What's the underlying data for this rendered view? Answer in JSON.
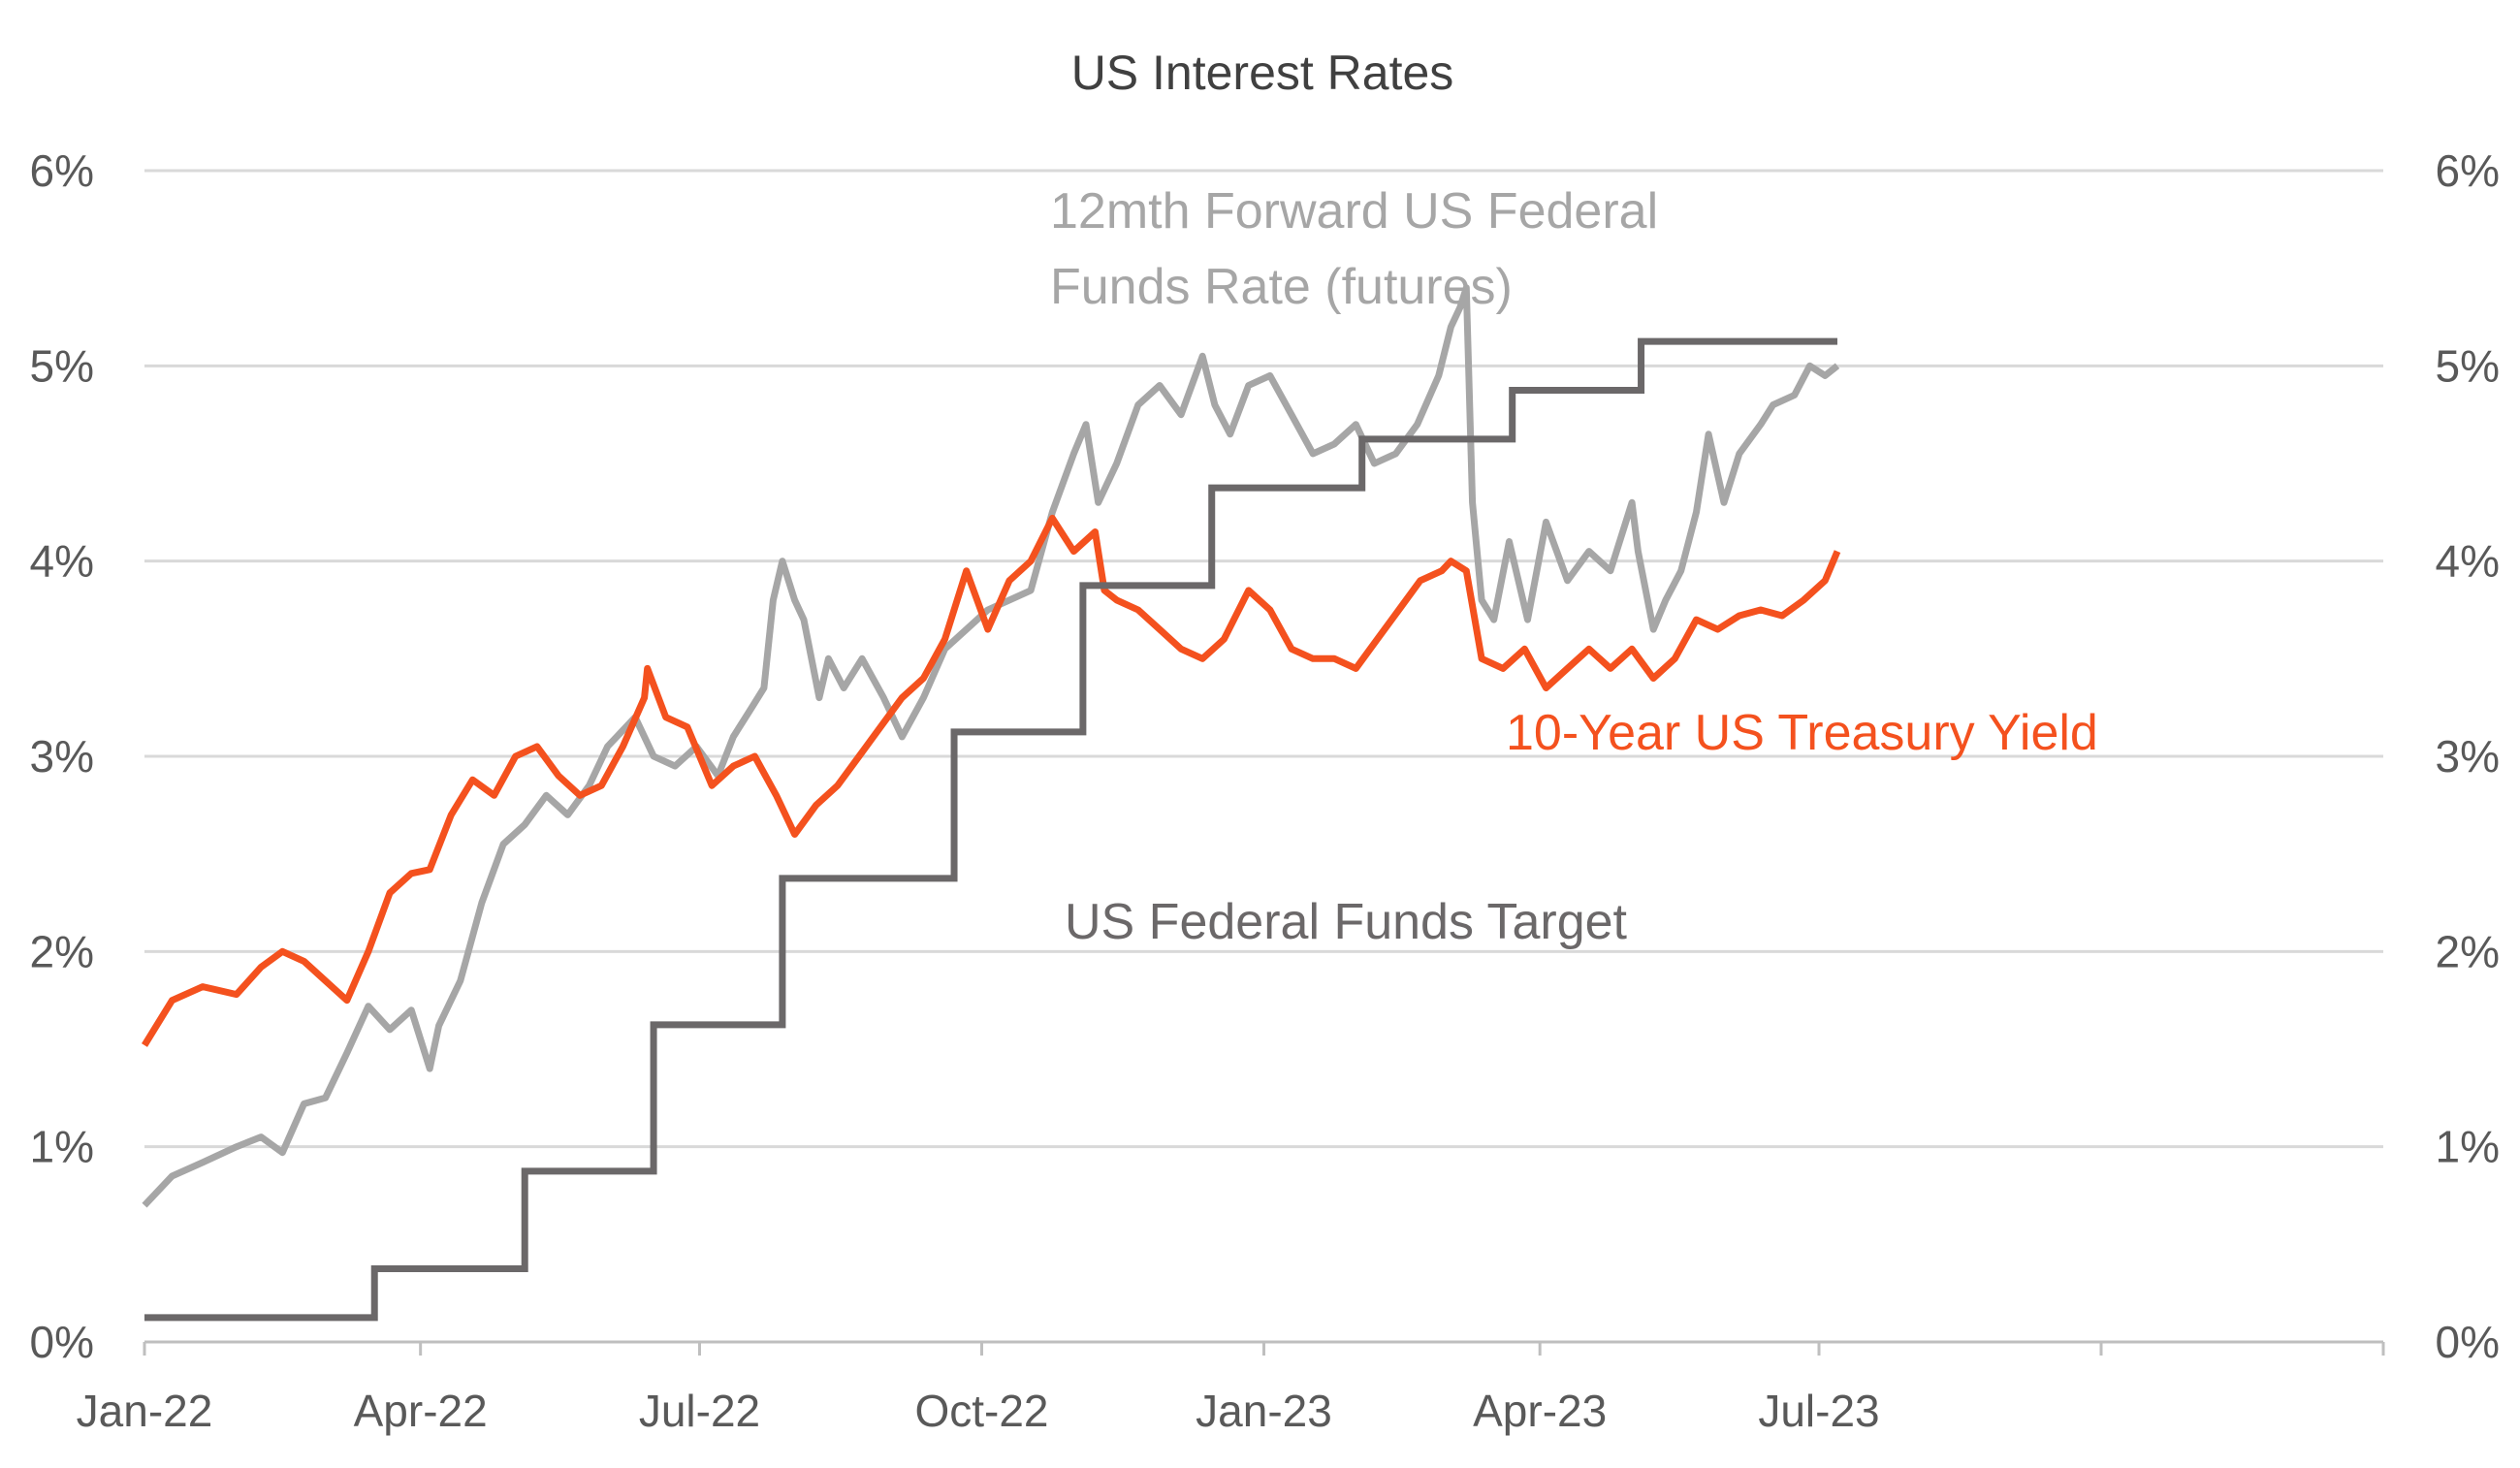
{
  "chart_data": {
    "type": "line",
    "title": "US Interest Rates",
    "y_axis_left": {
      "min": 0,
      "max": 6,
      "ticks": [
        "0%",
        "1%",
        "2%",
        "3%",
        "4%",
        "5%",
        "6%"
      ]
    },
    "y_axis_right": {
      "min": 0,
      "max": 6,
      "ticks": [
        "0%",
        "1%",
        "2%",
        "3%",
        "4%",
        "5%",
        "6%"
      ]
    },
    "x_axis": {
      "range": [
        "2022-01-01",
        "2024-01-01"
      ],
      "ticks": [
        {
          "date": "2022-01-01",
          "label": "Jan-22"
        },
        {
          "date": "2022-04-01",
          "label": "Apr-22"
        },
        {
          "date": "2022-07-01",
          "label": "Jul-22"
        },
        {
          "date": "2022-10-01",
          "label": "Oct-22"
        },
        {
          "date": "2023-01-01",
          "label": "Jan-23"
        },
        {
          "date": "2023-04-01",
          "label": "Apr-23"
        },
        {
          "date": "2023-07-01",
          "label": "Jul-23"
        }
      ]
    },
    "grid": true,
    "legend": "none (inline series labels)",
    "series": [
      {
        "name": "12mth Forward US Federal Funds Rate (futures)",
        "color": "#a6a6a6",
        "kind": "line",
        "points": [
          [
            "2022-01-01",
            0.7
          ],
          [
            "2022-01-10",
            0.85
          ],
          [
            "2022-01-20",
            0.92
          ],
          [
            "2022-01-31",
            1.0
          ],
          [
            "2022-02-08",
            1.05
          ],
          [
            "2022-02-15",
            0.97
          ],
          [
            "2022-02-22",
            1.22
          ],
          [
            "2022-03-01",
            1.25
          ],
          [
            "2022-03-08",
            1.48
          ],
          [
            "2022-03-15",
            1.72
          ],
          [
            "2022-03-22",
            1.6
          ],
          [
            "2022-03-29",
            1.7
          ],
          [
            "2022-04-04",
            1.4
          ],
          [
            "2022-04-07",
            1.62
          ],
          [
            "2022-04-14",
            1.85
          ],
          [
            "2022-04-21",
            2.25
          ],
          [
            "2022-04-28",
            2.55
          ],
          [
            "2022-05-05",
            2.65
          ],
          [
            "2022-05-12",
            2.8
          ],
          [
            "2022-05-19",
            2.7
          ],
          [
            "2022-05-26",
            2.85
          ],
          [
            "2022-06-01",
            3.05
          ],
          [
            "2022-06-07",
            3.15
          ],
          [
            "2022-06-10",
            3.2
          ],
          [
            "2022-06-16",
            3.0
          ],
          [
            "2022-06-23",
            2.95
          ],
          [
            "2022-06-30",
            3.05
          ],
          [
            "2022-07-07",
            2.9
          ],
          [
            "2022-07-12",
            3.1
          ],
          [
            "2022-07-18",
            3.25
          ],
          [
            "2022-07-22",
            3.35
          ],
          [
            "2022-07-25",
            3.8
          ],
          [
            "2022-07-28",
            4.0
          ],
          [
            "2022-08-01",
            3.8
          ],
          [
            "2022-08-04",
            3.7
          ],
          [
            "2022-08-09",
            3.3
          ],
          [
            "2022-08-12",
            3.5
          ],
          [
            "2022-08-17",
            3.35
          ],
          [
            "2022-08-23",
            3.5
          ],
          [
            "2022-08-30",
            3.3
          ],
          [
            "2022-09-05",
            3.1
          ],
          [
            "2022-09-12",
            3.3
          ],
          [
            "2022-09-19",
            3.55
          ],
          [
            "2022-09-26",
            3.65
          ],
          [
            "2022-10-03",
            3.75
          ],
          [
            "2022-10-10",
            3.8
          ],
          [
            "2022-10-17",
            3.85
          ],
          [
            "2022-10-24",
            4.25
          ],
          [
            "2022-10-31",
            4.55
          ],
          [
            "2022-11-04",
            4.7
          ],
          [
            "2022-11-08",
            4.3
          ],
          [
            "2022-11-14",
            4.5
          ],
          [
            "2022-11-21",
            4.8
          ],
          [
            "2022-11-28",
            4.9
          ],
          [
            "2022-12-05",
            4.75
          ],
          [
            "2022-12-12",
            5.05
          ],
          [
            "2022-12-16",
            4.8
          ],
          [
            "2022-12-21",
            4.65
          ],
          [
            "2022-12-27",
            4.9
          ],
          [
            "2023-01-03",
            4.95
          ],
          [
            "2023-01-10",
            4.75
          ],
          [
            "2023-01-17",
            4.55
          ],
          [
            "2023-01-24",
            4.6
          ],
          [
            "2023-01-31",
            4.7
          ],
          [
            "2023-02-06",
            4.5
          ],
          [
            "2023-02-13",
            4.55
          ],
          [
            "2023-02-20",
            4.7
          ],
          [
            "2023-02-27",
            4.95
          ],
          [
            "2023-03-03",
            5.2
          ],
          [
            "2023-03-06",
            5.3
          ],
          [
            "2023-03-08",
            5.4
          ],
          [
            "2023-03-10",
            4.3
          ],
          [
            "2023-03-13",
            3.8
          ],
          [
            "2023-03-17",
            3.7
          ],
          [
            "2023-03-22",
            4.1
          ],
          [
            "2023-03-28",
            3.7
          ],
          [
            "2023-04-03",
            4.2
          ],
          [
            "2023-04-10",
            3.9
          ],
          [
            "2023-04-17",
            4.05
          ],
          [
            "2023-04-24",
            3.95
          ],
          [
            "2023-05-01",
            4.3
          ],
          [
            "2023-05-03",
            4.05
          ],
          [
            "2023-05-08",
            3.65
          ],
          [
            "2023-05-12",
            3.8
          ],
          [
            "2023-05-17",
            3.95
          ],
          [
            "2023-05-22",
            4.25
          ],
          [
            "2023-05-26",
            4.65
          ],
          [
            "2023-05-31",
            4.3
          ],
          [
            "2023-06-05",
            4.55
          ],
          [
            "2023-06-12",
            4.7
          ],
          [
            "2023-06-16",
            4.8
          ],
          [
            "2023-06-23",
            4.85
          ],
          [
            "2023-06-28",
            5.0
          ],
          [
            "2023-07-03",
            4.95
          ],
          [
            "2023-07-07",
            5.0
          ]
        ]
      },
      {
        "name": "10-Year US Treasury Yield",
        "color": "#f4511e",
        "kind": "line",
        "points": [
          [
            "2022-01-01",
            1.52
          ],
          [
            "2022-01-10",
            1.75
          ],
          [
            "2022-01-20",
            1.82
          ],
          [
            "2022-01-31",
            1.78
          ],
          [
            "2022-02-08",
            1.92
          ],
          [
            "2022-02-15",
            2.0
          ],
          [
            "2022-02-22",
            1.95
          ],
          [
            "2022-03-01",
            1.85
          ],
          [
            "2022-03-08",
            1.75
          ],
          [
            "2022-03-15",
            2.0
          ],
          [
            "2022-03-22",
            2.3
          ],
          [
            "2022-03-29",
            2.4
          ],
          [
            "2022-04-04",
            2.42
          ],
          [
            "2022-04-11",
            2.7
          ],
          [
            "2022-04-18",
            2.88
          ],
          [
            "2022-04-25",
            2.8
          ],
          [
            "2022-05-02",
            3.0
          ],
          [
            "2022-05-09",
            3.05
          ],
          [
            "2022-05-16",
            2.9
          ],
          [
            "2022-05-23",
            2.8
          ],
          [
            "2022-05-30",
            2.85
          ],
          [
            "2022-06-06",
            3.05
          ],
          [
            "2022-06-13",
            3.3
          ],
          [
            "2022-06-14",
            3.45
          ],
          [
            "2022-06-20",
            3.2
          ],
          [
            "2022-06-27",
            3.15
          ],
          [
            "2022-07-05",
            2.85
          ],
          [
            "2022-07-12",
            2.95
          ],
          [
            "2022-07-19",
            3.0
          ],
          [
            "2022-07-26",
            2.8
          ],
          [
            "2022-08-01",
            2.6
          ],
          [
            "2022-08-08",
            2.75
          ],
          [
            "2022-08-15",
            2.85
          ],
          [
            "2022-08-22",
            3.0
          ],
          [
            "2022-08-29",
            3.15
          ],
          [
            "2022-09-05",
            3.3
          ],
          [
            "2022-09-12",
            3.4
          ],
          [
            "2022-09-19",
            3.6
          ],
          [
            "2022-09-26",
            3.95
          ],
          [
            "2022-10-03",
            3.65
          ],
          [
            "2022-10-10",
            3.9
          ],
          [
            "2022-10-17",
            4.0
          ],
          [
            "2022-10-24",
            4.22
          ],
          [
            "2022-10-31",
            4.05
          ],
          [
            "2022-11-07",
            4.15
          ],
          [
            "2022-11-10",
            3.85
          ],
          [
            "2022-11-14",
            3.8
          ],
          [
            "2022-11-21",
            3.75
          ],
          [
            "2022-11-28",
            3.65
          ],
          [
            "2022-12-05",
            3.55
          ],
          [
            "2022-12-12",
            3.5
          ],
          [
            "2022-12-19",
            3.6
          ],
          [
            "2022-12-27",
            3.85
          ],
          [
            "2023-01-03",
            3.75
          ],
          [
            "2023-01-10",
            3.55
          ],
          [
            "2023-01-17",
            3.5
          ],
          [
            "2023-01-24",
            3.5
          ],
          [
            "2023-01-31",
            3.45
          ],
          [
            "2023-02-07",
            3.6
          ],
          [
            "2023-02-14",
            3.75
          ],
          [
            "2023-02-21",
            3.9
          ],
          [
            "2023-02-28",
            3.95
          ],
          [
            "2023-03-03",
            4.0
          ],
          [
            "2023-03-08",
            3.95
          ],
          [
            "2023-03-13",
            3.5
          ],
          [
            "2023-03-20",
            3.45
          ],
          [
            "2023-03-27",
            3.55
          ],
          [
            "2023-04-03",
            3.35
          ],
          [
            "2023-04-10",
            3.45
          ],
          [
            "2023-04-17",
            3.55
          ],
          [
            "2023-04-24",
            3.45
          ],
          [
            "2023-05-01",
            3.55
          ],
          [
            "2023-05-08",
            3.4
          ],
          [
            "2023-05-15",
            3.5
          ],
          [
            "2023-05-22",
            3.7
          ],
          [
            "2023-05-29",
            3.65
          ],
          [
            "2023-06-05",
            3.72
          ],
          [
            "2023-06-12",
            3.75
          ],
          [
            "2023-06-19",
            3.72
          ],
          [
            "2023-06-26",
            3.8
          ],
          [
            "2023-07-03",
            3.9
          ],
          [
            "2023-07-07",
            4.05
          ]
        ]
      },
      {
        "name": "US Federal Funds Target",
        "color": "#6b6869",
        "kind": "step",
        "points": [
          [
            "2022-01-01",
            0.125
          ],
          [
            "2022-03-17",
            0.375
          ],
          [
            "2022-05-05",
            0.875
          ],
          [
            "2022-06-16",
            1.625
          ],
          [
            "2022-07-28",
            2.375
          ],
          [
            "2022-09-22",
            3.125
          ],
          [
            "2022-11-03",
            3.875
          ],
          [
            "2022-12-15",
            4.375
          ],
          [
            "2023-02-02",
            4.625
          ],
          [
            "2023-03-23",
            4.875
          ],
          [
            "2023-05-04",
            5.125
          ],
          [
            "2023-07-07",
            5.125
          ]
        ]
      }
    ],
    "labels": {
      "futures": [
        "12mth Forward US Federal",
        "Funds Rate (futures)"
      ],
      "treasury": "10-Year US Treasury Yield",
      "target": "US Federal Funds Target"
    }
  }
}
